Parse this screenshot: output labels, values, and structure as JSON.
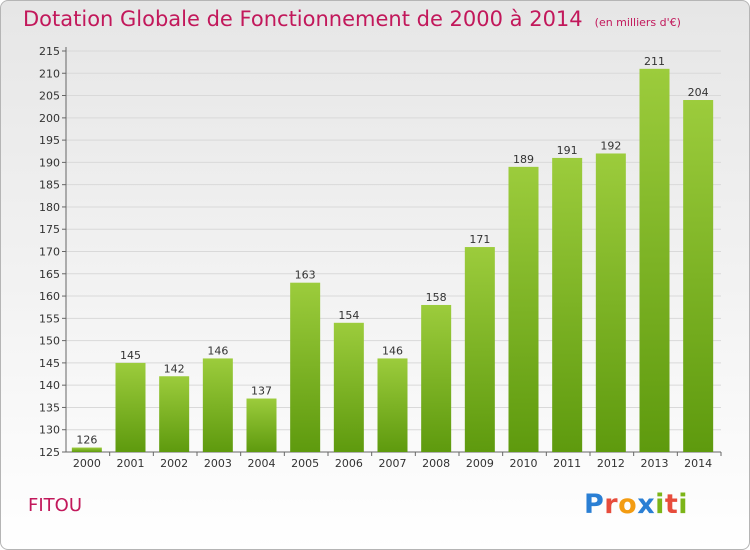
{
  "title": "Dotation Globale de Fonctionnement de 2000 à 2014",
  "subtitle": "(en milliers d'€)",
  "commune": "FITOU",
  "logo": {
    "text": "Proxiti",
    "letters": [
      {
        "ch": "P",
        "color": "#2a7fd4"
      },
      {
        "ch": "r",
        "color": "#e74c3c"
      },
      {
        "ch": "o",
        "color": "#f39c12"
      },
      {
        "ch": "x",
        "color": "#2a7fd4"
      },
      {
        "ch": "i",
        "color": "#7cb518"
      },
      {
        "ch": "t",
        "color": "#e74c3c"
      },
      {
        "ch": "i",
        "color": "#7cb518"
      }
    ]
  },
  "colors": {
    "title": "#c2185b",
    "bar_light": "#9ccc3c",
    "bar_dark": "#5e9a0e"
  },
  "chart_data": {
    "type": "bar",
    "title": "Dotation Globale de Fonctionnement de 2000 à 2014",
    "ylabel": "en milliers d'€",
    "xlabel": "",
    "categories": [
      "2000",
      "2001",
      "2002",
      "2003",
      "2004",
      "2005",
      "2006",
      "2007",
      "2008",
      "2009",
      "2010",
      "2011",
      "2012",
      "2013",
      "2014"
    ],
    "values": [
      126,
      145,
      142,
      146,
      137,
      163,
      154,
      146,
      158,
      171,
      189,
      191,
      192,
      211,
      204
    ],
    "ylim": [
      125,
      215
    ],
    "yticks": [
      125,
      130,
      135,
      140,
      145,
      150,
      155,
      160,
      165,
      170,
      175,
      180,
      185,
      190,
      195,
      200,
      205,
      210,
      215
    ],
    "grid": true
  }
}
